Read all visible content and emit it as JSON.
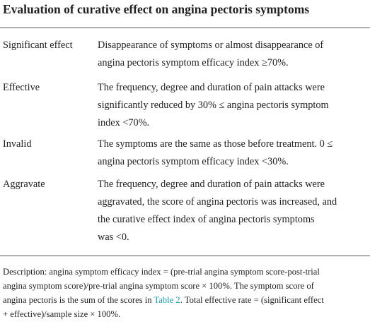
{
  "title": "Evaluation of curative effect on angina pectoris symptoms",
  "table": {
    "rows": [
      [
        "Significant effect",
        [
          "Disappearance of symptoms or almost disappearance of",
          "angina pectoris symptom efficacy index ≥70%."
        ]
      ],
      [
        "Effective",
        [
          "The frequency, degree and duration of pain attacks were",
          "significantly reduced by 30% ≤ angina pectoris symptom",
          "index <70%."
        ]
      ],
      [
        "Invalid",
        [
          "The symptoms are the same as those before treatment. 0 ≤",
          "angina pectoris symptom efficacy index <30%."
        ]
      ],
      [
        "Aggravate",
        [
          "The frequency, degree and duration of pain attacks were",
          "aggravated, the score of angina pectoris was increased, and",
          "the curative effect index of angina pectoris symptoms",
          "was <0."
        ]
      ]
    ]
  },
  "footnote": {
    "lines": [
      "Description: angina symptom efficacy index = (pre-trial angina symptom score-post-trial",
      "angina symptom score)/pre-trial angina symptom score × 100%. The symptom score of"
    ],
    "line3": [
      "angina pectoris is the sum of the scores in ",
      "Table 2",
      ". Total effective rate = (significant effect"
    ],
    "line4": "+ effective)/sample size × 100%."
  }
}
